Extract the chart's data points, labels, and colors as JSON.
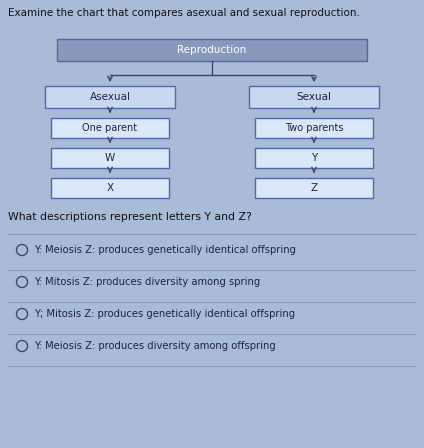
{
  "title": "Examine the chart that compares asexual and sexual reproduction.",
  "question": "What descriptions represent letters Y and Z?",
  "diagram": {
    "top_box": "Reproduction",
    "top_box_bg": "#8899bb",
    "top_box_text": "white",
    "branch_box_bg": "#c8d8f0",
    "branch_box_edge": "#5566aa",
    "branch_box_text": "#222244",
    "sub_box_bg": "#d8e8f8",
    "sub_box_edge": "#5566aa",
    "sub_box_text": "#222244",
    "left_branch": "Asexual",
    "right_branch": "Sexual",
    "left_boxes": [
      "One parent",
      "W",
      "X"
    ],
    "right_boxes": [
      "Two parents",
      "Y",
      "Z"
    ]
  },
  "options": [
    "Y: Meiosis Z: produces genetically identical offspring",
    "Y: Mitosis Z: produces diversity among spring",
    "Y; Mitosis Z: produces genetically identical offspring",
    "Y: Meiosis Z: produces diversity among offspring"
  ],
  "bg_color": "#a8bcd8",
  "line_color": "#444466",
  "text_color": "#111111",
  "option_text_color": "#222244",
  "divider_color": "#8899bb"
}
